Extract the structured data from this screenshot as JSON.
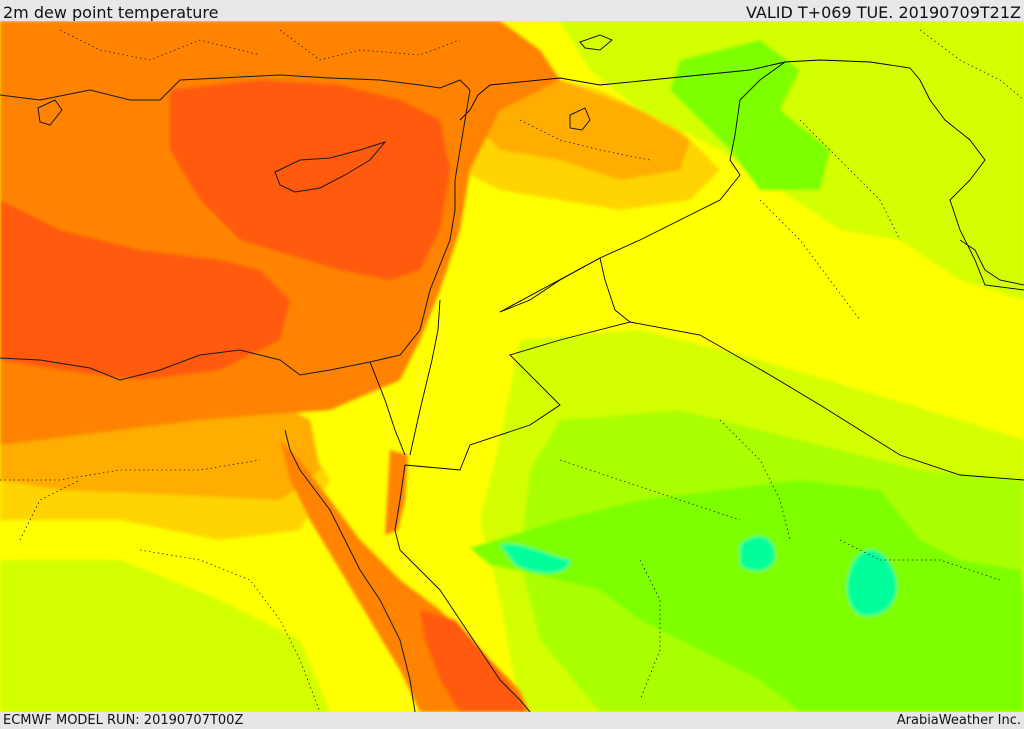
{
  "header": {
    "title": "2m dew point temperature",
    "valid": "VALID T+069 TUE. 20190709T21Z"
  },
  "footer": {
    "model_run": "ECMWF MODEL RUN: 20190707T00Z",
    "credit": "ArabiaWeather Inc."
  },
  "colors": {
    "deep_orange": "#ff5a0a",
    "orange": "#ff8200",
    "orange_yellow": "#ffad00",
    "amber": "#ffd400",
    "yellow": "#ffff00",
    "yellow_green": "#d4ff00",
    "green_yellow": "#aaff00",
    "green": "#7dff00",
    "aqua_green": "#00ff9a"
  }
}
